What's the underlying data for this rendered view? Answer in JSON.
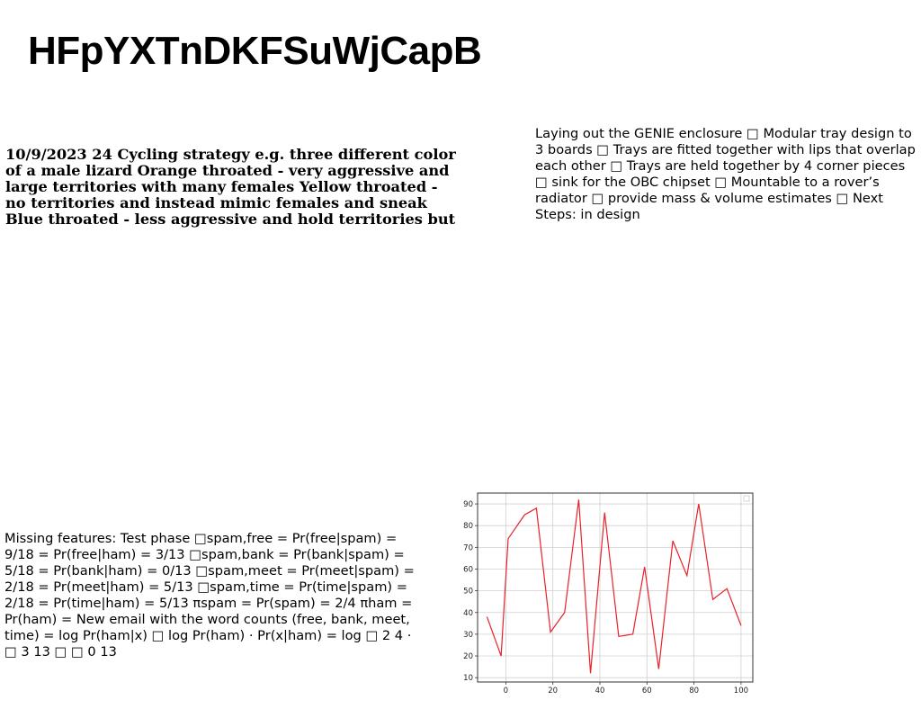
{
  "page": {
    "title": "HFpYXTnDKFSuWjCapB"
  },
  "blocks": {
    "bold_text": "10/9/2023 24 Cycling strategy e.g. three different color of a male lizard Orange throated - very aggressive and large territories with many females Yellow throated - no territories and instead mimic females and sneak Blue throated - less aggressive and hold territories but",
    "right_text": "Laying out the GENIE enclosure □ Modular tray design to 3 boards □ Trays are fitted together with lips that overlap each other □ Trays are held together by 4 corner pieces □ sink for the OBC chipset □ Mountable to a rover’s radiator □ provide mass & volume estimates □ Next Steps: in design",
    "left_text": "Missing features: Test phase □spam,free = Pr(free|spam) = 9/18 = Pr(free|ham) = 3/13 □spam,bank = Pr(bank|spam) = 5/18 = Pr(bank|ham) = 0/13 □spam,meet = Pr(meet|spam) = 2/18 = Pr(meet|ham) = 5/13 □spam,time = Pr(time|spam) = 2/18 = Pr(time|ham) = 5/13 πspam = Pr(spam) = 2/4 πham = Pr(ham) = New email with the word counts (free, bank, meet, time) = log Pr(ham|x) □ log Pr(ham) · Pr(x|ham) = log □ 2 4 · □ 3 13 □ □ 0 13"
  },
  "chart_data": {
    "type": "line",
    "x": [
      -8,
      -2,
      1,
      8,
      13,
      19,
      25,
      31,
      36,
      42,
      48,
      54,
      59,
      65,
      71,
      77,
      82,
      88,
      94,
      100
    ],
    "series": [
      {
        "values": [
          38,
          20,
          74,
          85,
          88,
          31,
          40,
          92,
          12,
          86,
          29,
          30,
          61,
          14,
          73,
          57,
          90,
          46,
          51,
          34
        ]
      }
    ],
    "xticks": [
      0,
      20,
      40,
      60,
      80,
      100
    ],
    "yticks": [
      10,
      20,
      30,
      40,
      50,
      60,
      70,
      80,
      90
    ],
    "xlim": [
      -12,
      105
    ],
    "ylim": [
      8,
      95
    ],
    "grid": true,
    "line_color": "#e8212a",
    "title": "",
    "xlabel": "",
    "ylabel": ""
  }
}
